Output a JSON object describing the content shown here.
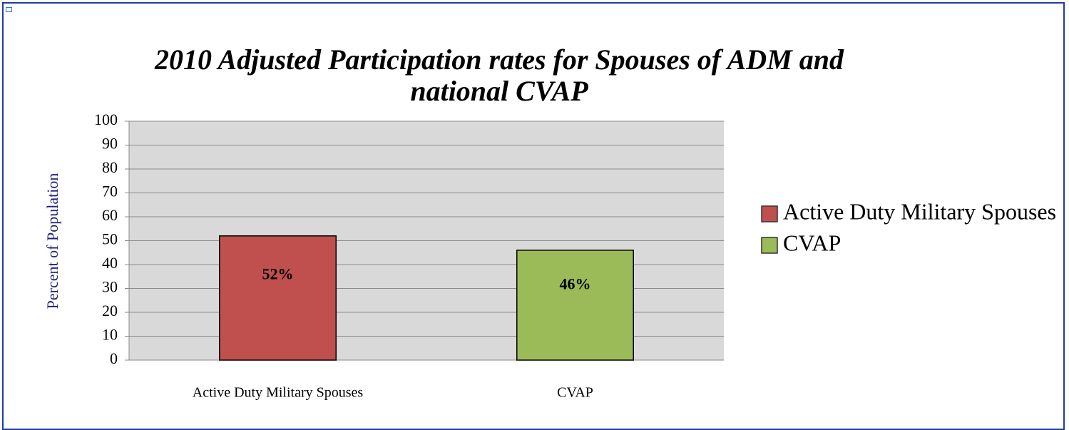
{
  "chart_data": {
    "type": "bar",
    "title": "2010 Adjusted Participation rates for Spouses of ADM and national CVAP",
    "y_label": "Percent of Population",
    "categories": [
      "Active Duty Military Spouses",
      "CVAP"
    ],
    "values": [
      52,
      46
    ],
    "value_labels": [
      "52%",
      "46%"
    ],
    "colors": [
      "#c0504d",
      "#9bbb59"
    ],
    "ylim": [
      0,
      100
    ],
    "yticks": [
      0,
      10,
      20,
      30,
      40,
      50,
      60,
      70,
      80,
      90,
      100
    ],
    "grid": true,
    "legend": "right"
  }
}
